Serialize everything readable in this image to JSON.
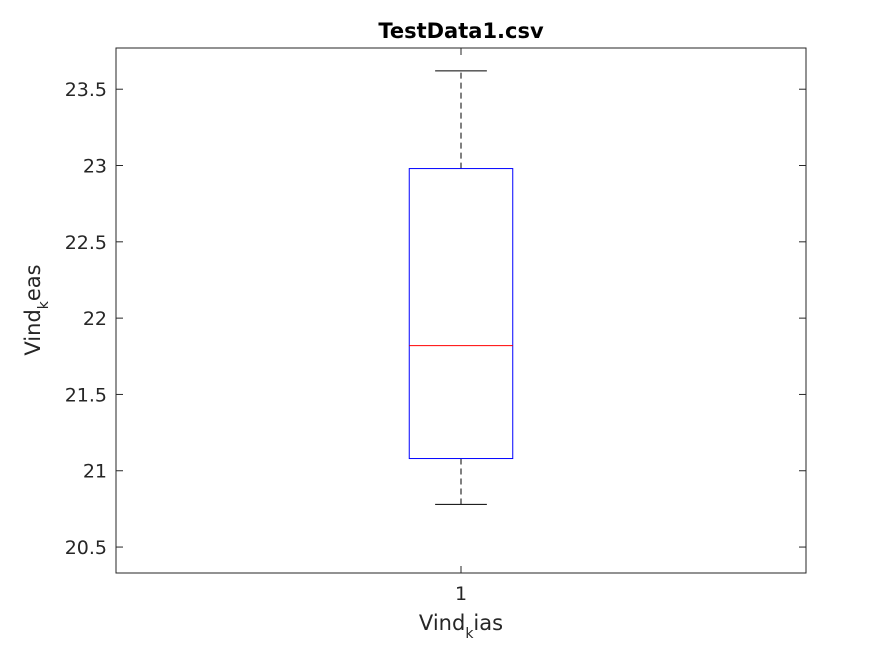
{
  "chart_data": {
    "type": "box",
    "title": "TestData1.csv",
    "xlabel": {
      "main": "Vind",
      "sub": "k",
      "rest": "ias"
    },
    "ylabel": {
      "main": "Vind",
      "sub": "k",
      "rest": "eas"
    },
    "categories": [
      "1"
    ],
    "ylim": [
      20.33,
      23.77
    ],
    "yticks": [
      20.5,
      21,
      21.5,
      22,
      22.5,
      23,
      23.5
    ],
    "ytick_labels": [
      "20.5",
      "21",
      "21.5",
      "22",
      "22.5",
      "23",
      "23.5"
    ],
    "boxes": [
      {
        "category": "1",
        "whisker_low": 20.78,
        "q1": 21.08,
        "median": 21.82,
        "q3": 22.98,
        "whisker_high": 23.62
      }
    ],
    "colors": {
      "box": "#0000ff",
      "median": "#ff0000",
      "whisker": "#000000",
      "axes": "#262626"
    }
  }
}
